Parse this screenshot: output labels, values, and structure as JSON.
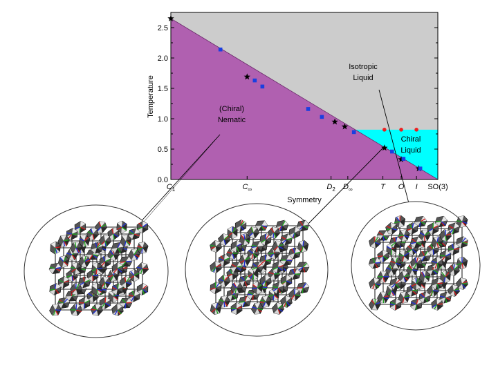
{
  "chart_data": {
    "type": "scatter",
    "ylabel": "Temperature",
    "xlabel": "Symmetry",
    "ylim": [
      0,
      2.75
    ],
    "y_ticks": [
      "0.0",
      "0.5",
      "1.0",
      "1.5",
      "2.0",
      "2.5"
    ],
    "x_categories": [
      {
        "key": "C1",
        "base": "C",
        "sub": "1",
        "x": 0
      },
      {
        "key": "Cinf",
        "base": "C",
        "sub": "∞",
        "x": 1
      },
      {
        "key": "D2",
        "base": "D",
        "sub": "2",
        "x": 2.1
      },
      {
        "key": "Dinf",
        "base": "D",
        "sub": "∞",
        "x": 2.32
      },
      {
        "key": "T",
        "base": "T",
        "sub": "",
        "x": 2.78
      },
      {
        "key": "O",
        "base": "O",
        "sub": "",
        "x": 3.02
      },
      {
        "key": "I",
        "base": "I",
        "sub": "",
        "x": 3.22
      },
      {
        "key": "SO3",
        "base": "SO(3)",
        "sub": "",
        "x": 3.5
      }
    ],
    "xlim": [
      0,
      3.5
    ],
    "regions": [
      {
        "name": "Isotropic Liquid",
        "lines": [
          "Isotropic",
          "Liquid"
        ],
        "color": "#cccccc"
      },
      {
        "name": "(Chiral) Nematic",
        "lines": [
          "(Chiral)",
          "Nematic"
        ],
        "color": "#b060b0"
      },
      {
        "name": "Chiral Liquid",
        "lines": [
          "Chiral",
          "Liquid"
        ],
        "color": "#00ffff"
      }
    ],
    "boundary_nematic": [
      [
        0,
        2.65
      ],
      [
        3.5,
        0
      ]
    ],
    "boundary_chiral": {
      "y": 0.82,
      "x_start": 2.47,
      "x_end": 3.5
    },
    "series": [
      {
        "marker": "star",
        "color": "#000000",
        "points": [
          [
            0,
            2.65
          ],
          [
            1,
            1.69
          ],
          [
            2.15,
            0.95
          ],
          [
            2.28,
            0.87
          ],
          [
            2.8,
            0.52
          ],
          [
            3.02,
            0.33
          ],
          [
            3.25,
            0.18
          ]
        ]
      },
      {
        "marker": "square",
        "color": "#1a3fe0",
        "points": [
          [
            0.65,
            2.14
          ],
          [
            1.1,
            1.63
          ],
          [
            1.2,
            1.53
          ],
          [
            1.8,
            1.16
          ],
          [
            1.98,
            1.03
          ],
          [
            2.4,
            0.78
          ],
          [
            2.9,
            0.46
          ],
          [
            3.05,
            0.34
          ],
          [
            3.27,
            0.18
          ]
        ]
      },
      {
        "marker": "circle",
        "color": "#ee2020",
        "points": [
          [
            2.8,
            0.82
          ],
          [
            3.02,
            0.82
          ],
          [
            3.22,
            0.82
          ]
        ]
      }
    ]
  }
}
